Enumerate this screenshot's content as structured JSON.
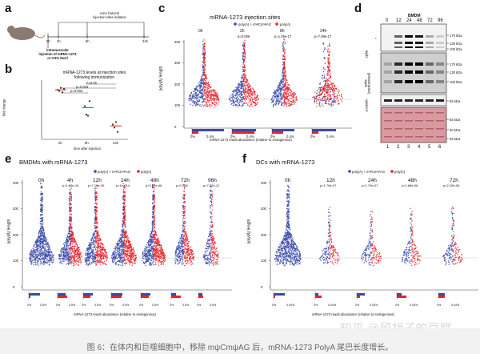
{
  "colors": {
    "polyA_mod": "#3a4aa8",
    "polyA": "#e8222a",
    "dot_red": "#d43a3a",
    "dot_blue": "#5a6ab8"
  },
  "caption": "图 6：在体内和巨噬细胞中，移除 mψCmψAG 后，mRNA-1273 PolyA 尾巴长度增长。",
  "watermark": "知乎 @留胡子的豆腐",
  "panels": {
    "a": {
      "letter": "a",
      "timepoints": [
        "0h",
        "2h",
        "8h",
        "24h"
      ],
      "top_label": "mice harvest\ninjection sites isolation",
      "left_label": "intramuscular\ninjection of mRNA-1273\nor 0.9% NaCl"
    },
    "b": {
      "letter": "b",
      "title": "mRNA-1273 levels at injection sites\nfollowing immunization",
      "ylabel": "fold change",
      "xlabel": "time after injection",
      "xticks": [
        "2h",
        "8h",
        "24h"
      ],
      "pvalues": [
        "p=0.25",
        "p=0.004",
        "p=0.002"
      ],
      "points": [
        {
          "x": "2h",
          "values": [
            1.0,
            0.9,
            1.2,
            0.8,
            1.1
          ]
        },
        {
          "x": "8h",
          "values": [
            0.22,
            0.1,
            0.09,
            0.35
          ]
        },
        {
          "x": "24h",
          "values": [
            0.04,
            0.03,
            0.05,
            0.02
          ]
        }
      ]
    },
    "c": {
      "letter": "c",
      "title": "mRNA-1273 injection sites",
      "legend": [
        "poly(A) + mΨCmΨAG",
        "poly(A)"
      ],
      "ylabel": "poly(A) length",
      "yticks": [
        "400",
        "300",
        "200",
        "100",
        "0"
      ],
      "groups": [
        "0h",
        "2h",
        "8h",
        "24h"
      ],
      "pvalues": [
        "",
        "p=0.006",
        "p=1.05e-17",
        "p=7.89e-17"
      ],
      "xlabel": "mRNA-1273 reads abundance (relative to endogenous)",
      "xticks": [
        "0%",
        "0.4%",
        "0%",
        "0.4%",
        "0%",
        "0.4%",
        "0%",
        "0.4%"
      ]
    },
    "d": {
      "letter": "d",
      "title": "BMDM",
      "lanes_time": [
        "0",
        "12",
        "24",
        "48",
        "72",
        "96"
      ],
      "row_labels": [
        "spike",
        "spike\n(overexposed)",
        "a-tubulin",
        "Ponceau"
      ],
      "kda": [
        "170 kDa",
        "130 kDa",
        "100 kDa",
        "170 kDa",
        "130 kDa",
        "100 kDa",
        "55 kDa",
        "55 kDa",
        "40 kDa",
        "35 kDa"
      ],
      "lane_numbers": [
        "1",
        "2",
        "3",
        "4",
        "5",
        "6"
      ],
      "star": "*"
    },
    "e": {
      "letter": "e",
      "title": "BMDMs with mRNA-1273",
      "legend": [
        "poly(A) + mΨCmΨAG",
        "poly(A)"
      ],
      "ylabel": "poly(A) length",
      "yticks": [
        "400",
        "300",
        "200",
        "100",
        "0"
      ],
      "groups": [
        "0h",
        "4h",
        "12h",
        "24h",
        "48h",
        "72h",
        "96h"
      ],
      "pvalues": [
        "",
        "p=1.45e-16",
        "p=7.15e-09",
        "p=1e-314",
        "p=3.87e-66",
        "p=0.008",
        "p=7.87e-12"
      ],
      "xlabel": "mRNA-1273 reads abundance (relative to endogenous)",
      "xticks": [
        "0%",
        "0.5%",
        "0%",
        "0.5%",
        "0%",
        "0.5%",
        "0%",
        "0.5%",
        "0%",
        "0.5%",
        "0%",
        "0.5%",
        "0%",
        "0.5%"
      ]
    },
    "f": {
      "letter": "f",
      "title": "DCs with mRNA-1273",
      "legend": [
        "poly(A) + mΨCmΨAG",
        "poly(A)"
      ],
      "ylabel": "poly(A) length",
      "yticks": [
        "400",
        "300",
        "200",
        "100",
        "0"
      ],
      "groups": [
        "0h",
        "12h",
        "24h",
        "48h",
        "72h"
      ],
      "pvalues": [
        "",
        "p=1.79e-07",
        "p=1.79e-07",
        "p=1.68e-06",
        "p=2.29e-06"
      ],
      "xlabel": "mRNA-1273 reads abundance (relative to endogenous)",
      "xticks": [
        "0%",
        "0.04%",
        "0%",
        "0.04%",
        "0%",
        "0.04%",
        "0%",
        "0.04%",
        "0%",
        "0.04%"
      ]
    }
  }
}
